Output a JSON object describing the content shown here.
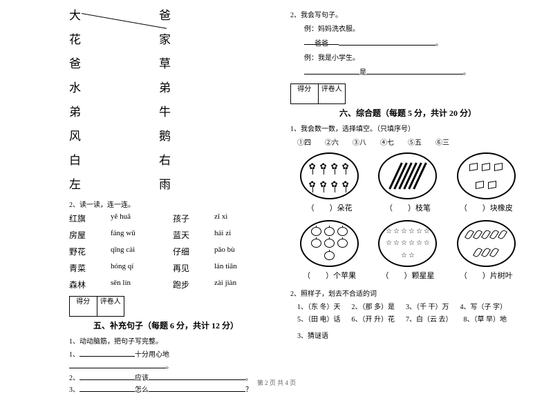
{
  "left": {
    "pairs": [
      {
        "l": "大",
        "r": "爸"
      },
      {
        "l": "花",
        "r": "家"
      },
      {
        "l": "爸",
        "r": "草"
      },
      {
        "l": "水",
        "r": "弟"
      },
      {
        "l": "弟",
        "r": "牛"
      },
      {
        "l": "风",
        "r": "鹅"
      },
      {
        "l": "白",
        "r": "右"
      },
      {
        "l": "左",
        "r": "雨"
      }
    ],
    "q2_title": "2、读一读，连一连。",
    "pinyin_rows": [
      {
        "a": "红旗",
        "b": "yě  huā",
        "c": "孩子",
        "d": "zǐ  xì"
      },
      {
        "a": "房屋",
        "b": "fáng  wū",
        "c": "蓝天",
        "d": "hái  zi"
      },
      {
        "a": "野花",
        "b": "qīng  cài",
        "c": "仔细",
        "d": "pǎo  bù"
      },
      {
        "a": "青菜",
        "b": "hóng  qí",
        "c": "再见",
        "d": "lán  tiān"
      },
      {
        "a": "森林",
        "b": "sēn  lín",
        "c": "跑步",
        "d": "zài  jiàn"
      }
    ],
    "score_labels": {
      "a": "得分",
      "b": "评卷人"
    },
    "section5_title": "五、补充句子（每题 6 分，共计 12 分）",
    "fill_head": "1、动动脑筋，把句子写完整。",
    "fill_lines": [
      {
        "pre": "1、",
        "mid": "十分用心地",
        "post": "。"
      },
      {
        "pre": "2、",
        "mid": "应该",
        "post": "。"
      },
      {
        "pre": "3、",
        "mid": "怎么",
        "post": "？"
      }
    ]
  },
  "right": {
    "q2_title": "2、我会写句子。",
    "ex1_label": "例：妈妈洗衣服。",
    "ex1_prompt": "爸爸",
    "ex2_label": "例：我是小学生。",
    "ex2_mid": "是",
    "score_labels": {
      "a": "得分",
      "b": "评卷人"
    },
    "section6_title": "六、综合题（每题 5 分，共计 20 分）",
    "q1_title": "1、我会数一数，选择填空。（只填序号）",
    "options": [
      "①四",
      "②六",
      "③八",
      "④七",
      "⑤五",
      "⑥三"
    ],
    "captions1": [
      "（　　）朵花",
      "（　　）枝笔",
      "（　　）块橡皮"
    ],
    "captions2": [
      "（　　）个苹果",
      "（　　）颗星星",
      "（　　）片树叶"
    ],
    "q2_title_b": "2、照样子，划去不合适的词",
    "q2_items_row1": [
      "1、（东  冬）天",
      "2、（那  多）是",
      "3、（千  干）万",
      "4、写（子  字）"
    ],
    "q2_items_row2": [
      "5、（田  电）话",
      "6、（开  升）花",
      "7、白（云  去）",
      "8、（草  早）地"
    ],
    "q3_title": "3、猜谜语",
    "counts": {
      "flowers": 8,
      "pencils": 6,
      "cubes": 5,
      "apples": 7,
      "stars": 14,
      "leaves": 8
    }
  },
  "footer": "第 2 页  共 4 页"
}
